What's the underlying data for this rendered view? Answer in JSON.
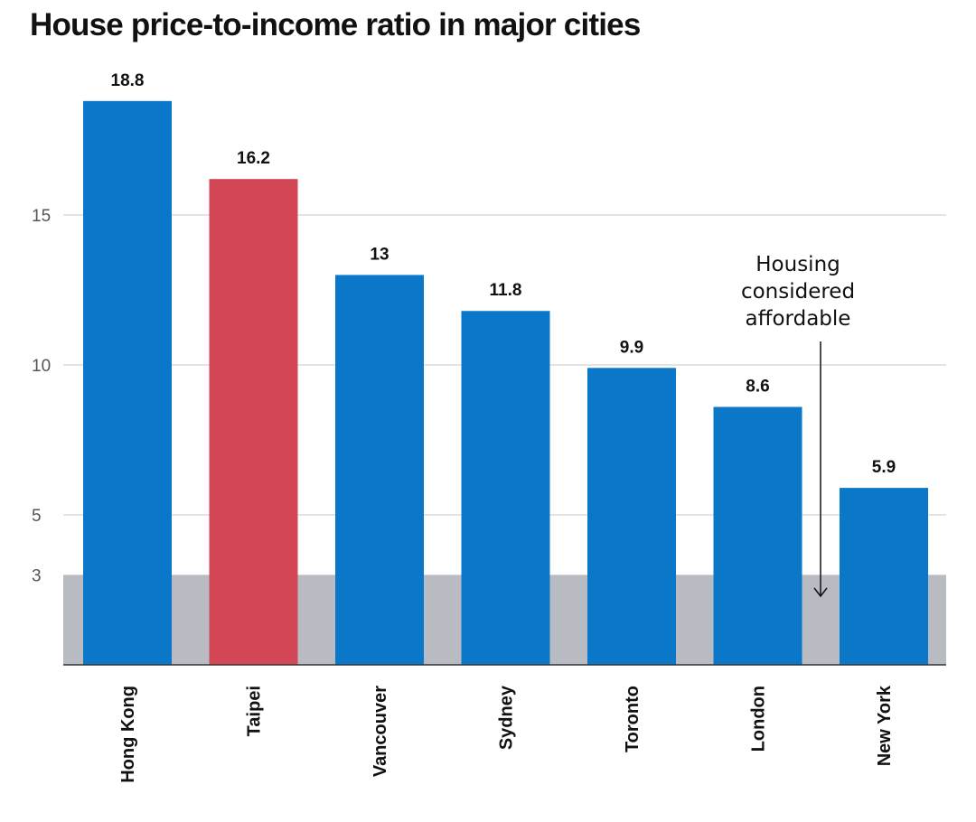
{
  "chart_data": {
    "type": "bar",
    "title": "House price-to-income ratio in major cities",
    "categories": [
      "Hong Kong",
      "Taipei",
      "Vancouver",
      "Sydney",
      "Toronto",
      "London",
      "New York"
    ],
    "values": [
      18.8,
      16.2,
      13,
      11.8,
      9.9,
      8.6,
      5.9
    ],
    "value_labels": [
      "18.8",
      "16.2",
      "13",
      "11.8",
      "9.9",
      "8.6",
      "5.9"
    ],
    "bar_colors": [
      "#0a77c8",
      "#d24655",
      "#0a77c8",
      "#0a77c8",
      "#0a77c8",
      "#0a77c8",
      "#0a77c8"
    ],
    "yticks": [
      3,
      5,
      10,
      15
    ],
    "ylim": [
      0,
      20
    ],
    "grid": true,
    "affordable_band": {
      "from": 0,
      "to": 3,
      "color": "#b8bcc2"
    },
    "annotation": [
      "Housing",
      "considered",
      "affordable"
    ],
    "xlabel": "",
    "ylabel": ""
  }
}
